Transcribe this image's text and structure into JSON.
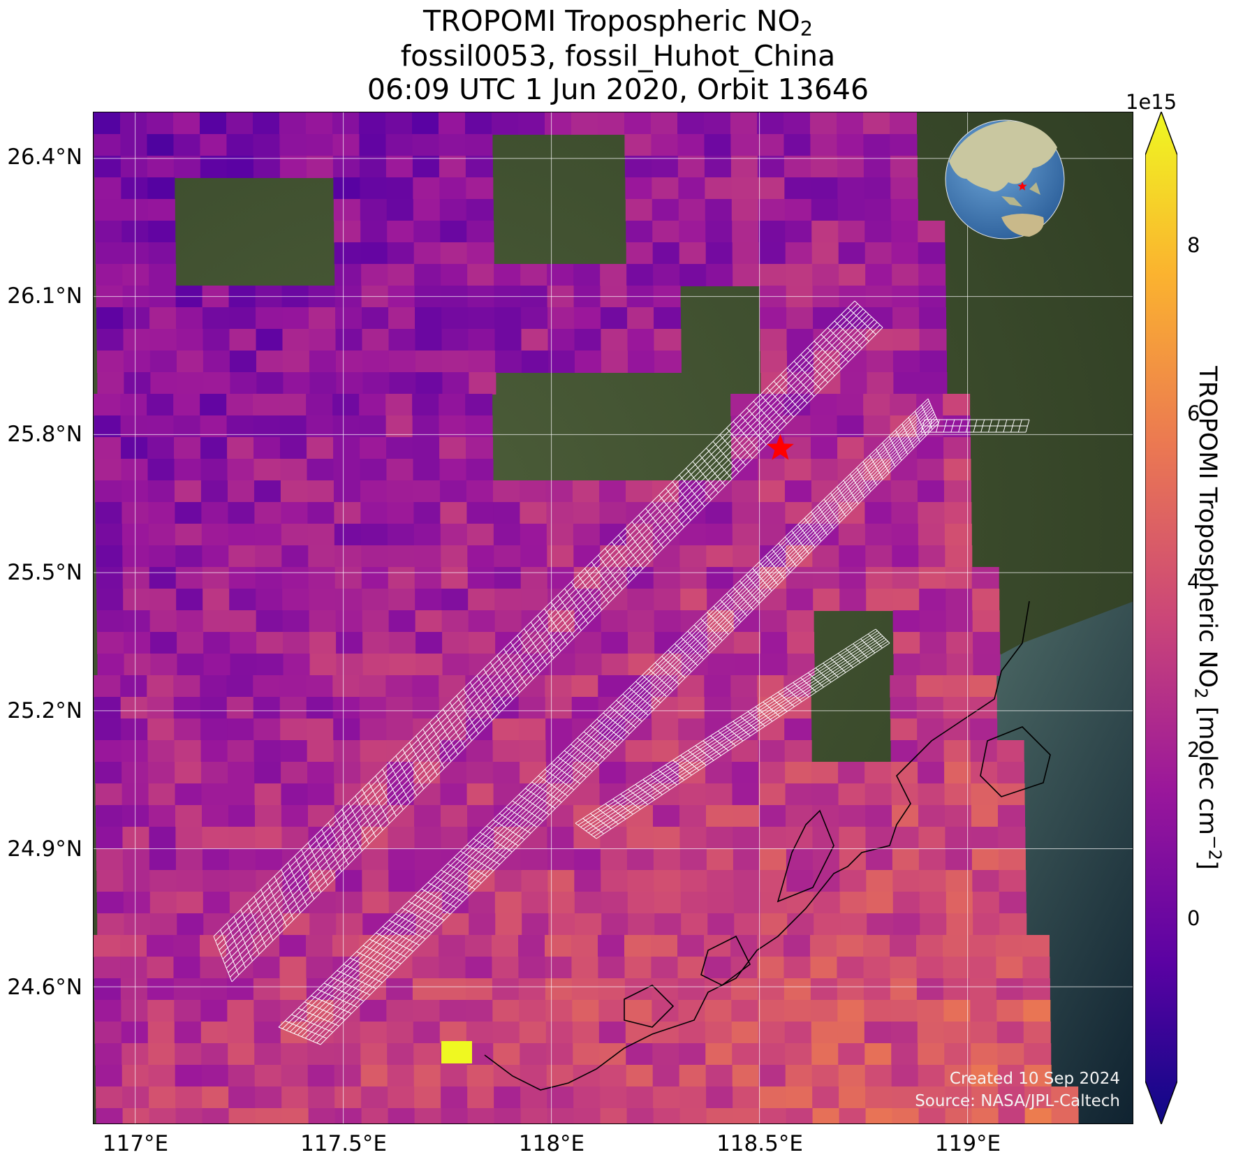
{
  "title": {
    "line1_prefix": "TROPOMI Tropospheric NO",
    "line1_sub": "2",
    "line2": "fossil0053, fossil_Huhot_China",
    "line3": "06:09 UTC 1 Jun 2020, Orbit 13646"
  },
  "map": {
    "lat_labels": [
      "26.4°N",
      "26.1°N",
      "25.8°N",
      "25.5°N",
      "25.2°N",
      "24.9°N",
      "24.6°N"
    ],
    "lon_labels": [
      "117°E",
      "117.5°E",
      "118°E",
      "118.5°E",
      "119°E"
    ],
    "extent": {
      "lon_min": 116.9,
      "lon_max": 119.4,
      "lat_min": 24.3,
      "lat_max": 26.5
    },
    "gridlines": {
      "lats": [
        26.4,
        26.1,
        25.8,
        25.5,
        25.2,
        24.9,
        24.6
      ],
      "lons": [
        117.0,
        117.5,
        118.0,
        118.5,
        119.0
      ]
    },
    "target_marker": {
      "lon": 118.55,
      "lat": 25.77,
      "symbol": "star",
      "color": "#ff0000"
    },
    "target_areas": [
      {
        "name": "footprint-strip-north",
        "type": "polygon",
        "color": "#ffffff"
      },
      {
        "name": "footprint-strip-south",
        "type": "polygon",
        "color": "#ffffff"
      },
      {
        "name": "footprint-strip-middle",
        "type": "polygon",
        "color": "#ffffff"
      }
    ],
    "inset_globe": {
      "highlight_color": "#ff0000",
      "ocean_color": "#4a86c2",
      "land_color": "#c9c7a0"
    }
  },
  "credits": {
    "created": "Created 10 Sep 2024",
    "source": "Source: NASA/JPL-Caltech"
  },
  "colorbar": {
    "label_prefix": "TROPOMI Tropospheric NO",
    "label_sub": "2",
    "label_mid": " [molec cm",
    "label_sup": "−2",
    "label_suffix": "]",
    "multiplier": "1e15",
    "ticks": [
      "0",
      "2",
      "4",
      "6",
      "8"
    ],
    "colormap": "plasma",
    "colors": [
      "#0d0887",
      "#5b02a3",
      "#9a179b",
      "#cb4678",
      "#eb7852",
      "#fbb32f",
      "#eff821"
    ]
  }
}
